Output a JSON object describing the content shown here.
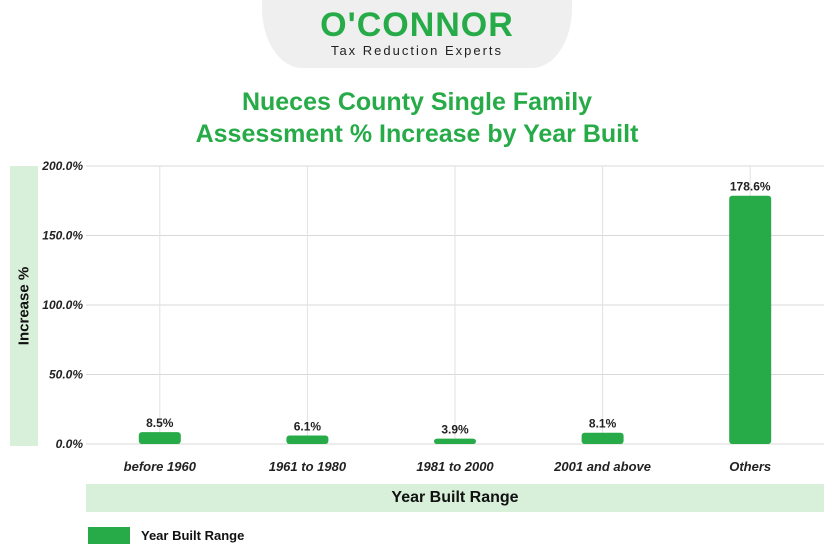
{
  "logo": {
    "name": "O'CONNOR",
    "tagline": "Tax Reduction Experts"
  },
  "colors": {
    "accent": "#27ab48",
    "band": "#d8efd9"
  },
  "chart_data": {
    "type": "bar",
    "title": "Nueces County Single Family Assessment % Increase by Year Built",
    "title_lines": [
      "Nueces County Single Family",
      "Assessment % Increase by Year Built"
    ],
    "xlabel": "Year Built Range",
    "ylabel": "Increase %",
    "categories": [
      "before 1960",
      "1961 to 1980",
      "1981 to 2000",
      "2001 and above",
      "Others"
    ],
    "series": [
      {
        "name": "Year Built Range",
        "values": [
          8.5,
          6.1,
          3.9,
          8.1,
          178.6
        ]
      }
    ],
    "data_labels": [
      "8.5%",
      "6.1%",
      "3.9%",
      "8.1%",
      "178.6%"
    ],
    "y_ticks": [
      0,
      50,
      100,
      150,
      200
    ],
    "y_tick_labels": [
      "0.0%",
      "50.0%",
      "100.0%",
      "150.0%",
      "200.0%"
    ],
    "ylim": [
      0,
      200
    ],
    "grid": true,
    "legend": "bottom-left"
  }
}
